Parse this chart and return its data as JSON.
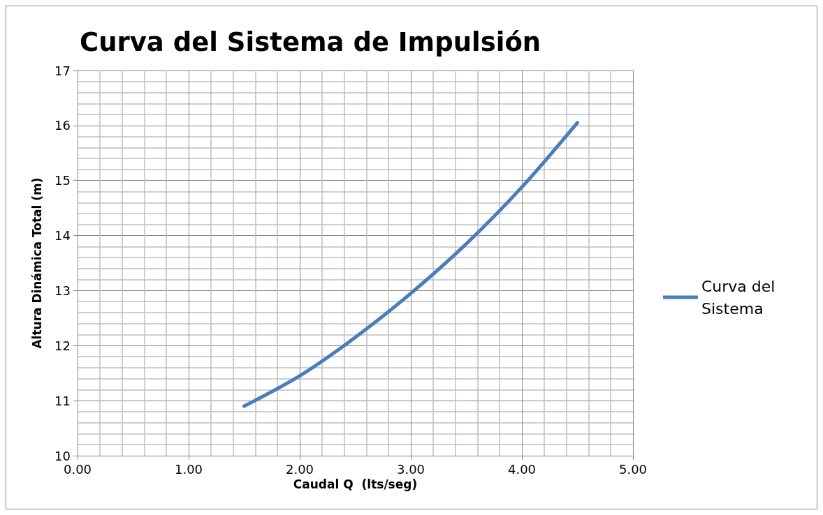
{
  "chart_data": {
    "type": "line",
    "title": "Curva del Sistema de Impulsión",
    "xlabel": "Caudal Q  (lts/seg)",
    "ylabel": "Altura Dinámica Total (m)",
    "x": [
      1.5,
      2.0,
      2.5,
      3.0,
      3.5,
      4.0,
      4.5
    ],
    "series": [
      {
        "name": "Curva del Sistema",
        "color": "#4a7ebb",
        "values": [
          10.9,
          11.45,
          12.15,
          12.95,
          13.85,
          14.88,
          16.05
        ]
      }
    ],
    "xlim": [
      0,
      5
    ],
    "xticks": [
      {
        "value": 0,
        "label": "0.00"
      },
      {
        "value": 1,
        "label": "1.00"
      },
      {
        "value": 2,
        "label": "2.00"
      },
      {
        "value": 3,
        "label": "3.00"
      },
      {
        "value": 4,
        "label": "4.00"
      },
      {
        "value": 5,
        "label": "5.00"
      }
    ],
    "ylim": [
      10,
      17
    ],
    "yticks": [
      10,
      11,
      12,
      13,
      14,
      15,
      16,
      17
    ],
    "grid": true,
    "legend": "right",
    "marker": "none",
    "line_style": "solid"
  }
}
